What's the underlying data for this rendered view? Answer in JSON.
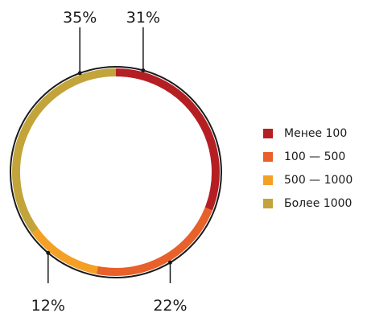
{
  "chart_data": {
    "type": "pie",
    "variant": "ring",
    "legend_position": "right",
    "categories": [
      "Менее 100",
      "100 — 500",
      "500 — 1000",
      "Более 1000"
    ],
    "values": [
      31,
      22,
      12,
      35
    ],
    "value_labels": [
      "31%",
      "22%",
      "12%",
      "35%"
    ],
    "colors": [
      "#b51f24",
      "#e8602a",
      "#f4a027",
      "#c2a43a"
    ]
  }
}
